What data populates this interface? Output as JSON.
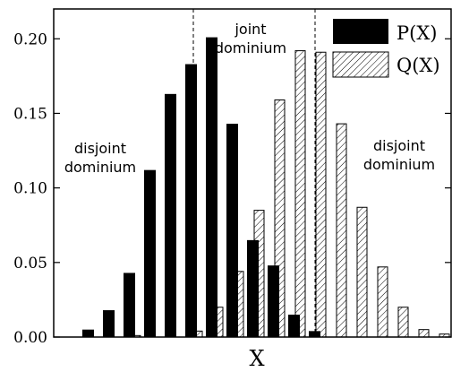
{
  "chart_data": {
    "type": "bar",
    "title": "",
    "xlabel": "X",
    "ylabel": "",
    "ylim": [
      0,
      0.22
    ],
    "yticks": [
      "0.00",
      "0.05",
      "0.10",
      "0.15",
      "0.20"
    ],
    "grid": false,
    "legend_position": "top-right",
    "series": [
      {
        "name": "P(X)",
        "style": "solid",
        "color": "#000000",
        "values": [
          0.005,
          0.018,
          0.043,
          0.112,
          0.163,
          0.183,
          0.201,
          0.143,
          0.065,
          0.048,
          0.015,
          0.004,
          0,
          0,
          0,
          0,
          0,
          0
        ]
      },
      {
        "name": "Q(X)",
        "style": "hatched",
        "color": "#000000",
        "values": [
          0,
          0,
          0.001,
          0,
          0,
          0.004,
          0.02,
          0.044,
          0.085,
          0.159,
          0.192,
          0.191,
          0.143,
          0.087,
          0.047,
          0.02,
          0.005,
          0.002
        ]
      }
    ],
    "annotations": [
      {
        "id": "left",
        "lines": [
          "disjoint",
          "dominium"
        ]
      },
      {
        "id": "middle",
        "lines": [
          "joint",
          "dominium"
        ]
      },
      {
        "id": "right",
        "lines": [
          "disjoint",
          "dominium"
        ]
      }
    ]
  }
}
